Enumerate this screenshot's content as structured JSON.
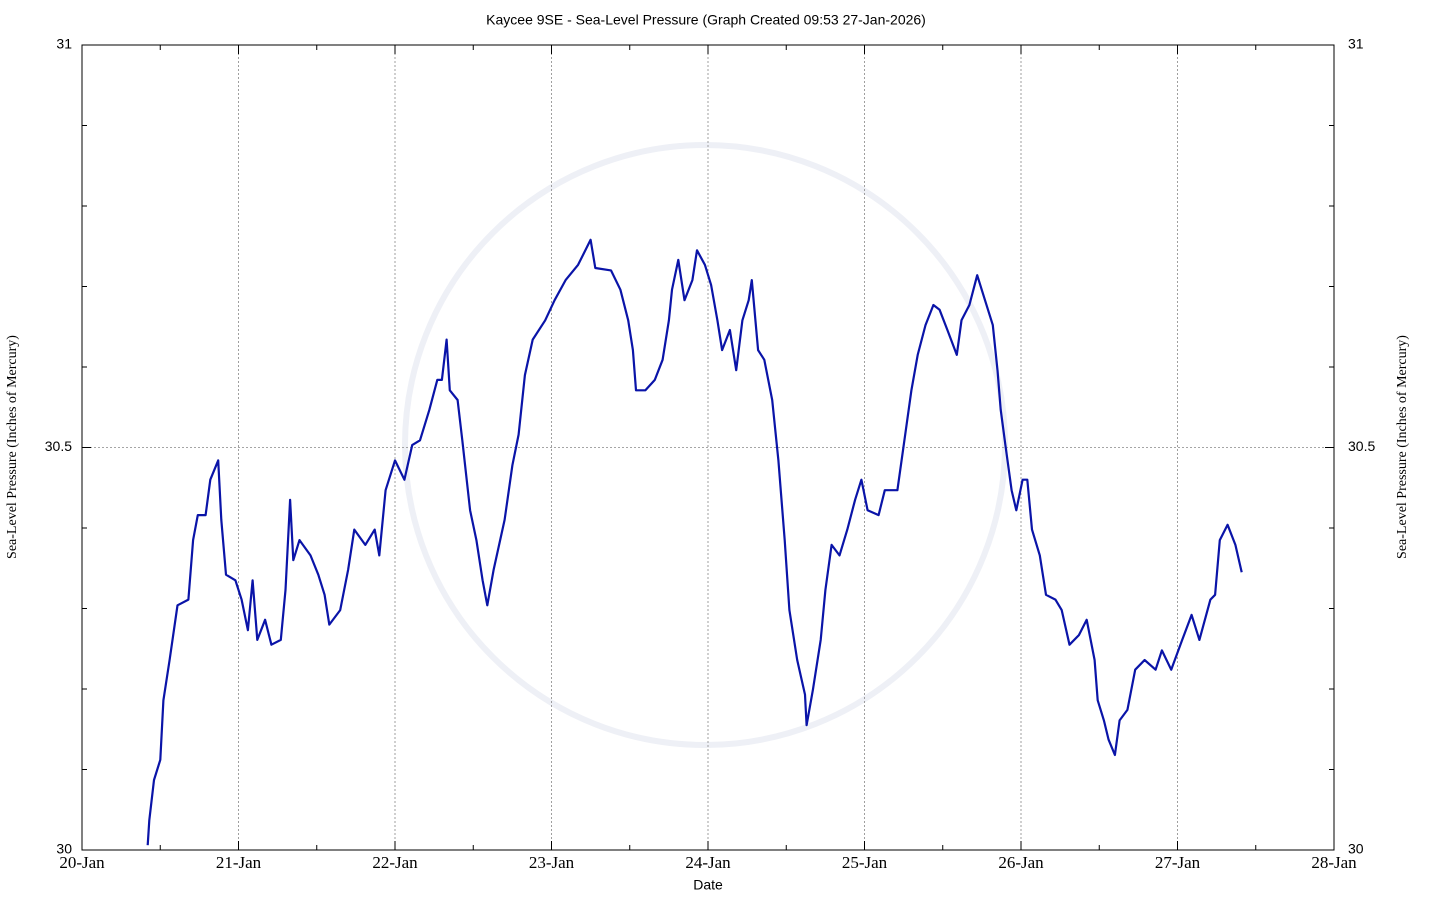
{
  "chart_data": {
    "type": "line",
    "title": "Kaycee 9SE - Sea-Level Pressure (Graph Created 09:53 27-Jan-2026)",
    "xlabel": "Date",
    "ylabel": "Sea-Level Pressure (Inches of Mercury)",
    "color": "#0a14a8",
    "grid": true,
    "xlim": [
      0,
      8
    ],
    "xticks": [
      {
        "value": 0,
        "label": "20-Jan"
      },
      {
        "value": 1,
        "label": "21-Jan"
      },
      {
        "value": 2,
        "label": "22-Jan"
      },
      {
        "value": 3,
        "label": "23-Jan"
      },
      {
        "value": 4,
        "label": "24-Jan"
      },
      {
        "value": 5,
        "label": "25-Jan"
      },
      {
        "value": 6,
        "label": "26-Jan"
      },
      {
        "value": 7,
        "label": "27-Jan"
      },
      {
        "value": 8,
        "label": "28-Jan"
      }
    ],
    "xminorticks": [
      0.5,
      1.5,
      2.5,
      3.5,
      4.5,
      5.5,
      6.5,
      7.5
    ],
    "ylim": [
      30,
      31
    ],
    "yticks": [
      30,
      30.5,
      31
    ],
    "yminorticks": [
      30.1,
      30.2,
      30.3,
      30.4,
      30.6,
      30.7,
      30.8,
      30.9
    ],
    "x": [
      0.42,
      0.43,
      0.46,
      0.5,
      0.52,
      0.56,
      0.61,
      0.68,
      0.71,
      0.74,
      0.79,
      0.82,
      0.87,
      0.89,
      0.92,
      0.98,
      1.02,
      1.06,
      1.09,
      1.12,
      1.17,
      1.21,
      1.27,
      1.3,
      1.33,
      1.35,
      1.39,
      1.46,
      1.51,
      1.55,
      1.58,
      1.65,
      1.7,
      1.74,
      1.81,
      1.87,
      1.9,
      1.94,
      2.0,
      2.06,
      2.11,
      2.16,
      2.22,
      2.27,
      2.3,
      2.33,
      2.35,
      2.4,
      2.43,
      2.48,
      2.52,
      2.56,
      2.59,
      2.63,
      2.7,
      2.75,
      2.79,
      2.83,
      2.88,
      2.96,
      3.02,
      3.09,
      3.17,
      3.25,
      3.28,
      3.38,
      3.44,
      3.49,
      3.52,
      3.54,
      3.6,
      3.66,
      3.71,
      3.75,
      3.77,
      3.81,
      3.85,
      3.9,
      3.93,
      3.98,
      4.02,
      4.06,
      4.09,
      4.14,
      4.18,
      4.22,
      4.26,
      4.28,
      4.32,
      4.36,
      4.41,
      4.45,
      4.49,
      4.52,
      4.57,
      4.62,
      4.63,
      4.67,
      4.72,
      4.75,
      4.79,
      4.84,
      4.89,
      4.94,
      4.98,
      5.02,
      5.09,
      5.13,
      5.21,
      5.26,
      5.3,
      5.34,
      5.39,
      5.44,
      5.48,
      5.53,
      5.59,
      5.62,
      5.67,
      5.72,
      5.77,
      5.82,
      5.85,
      5.87,
      5.9,
      5.94,
      5.97,
      6.01,
      6.04,
      6.07,
      6.12,
      6.16,
      6.22,
      6.26,
      6.31,
      6.37,
      6.42,
      6.47,
      6.49,
      6.53,
      6.56,
      6.6,
      6.63,
      6.68,
      6.73,
      6.79,
      6.86,
      6.9,
      6.96,
      7.03,
      7.09,
      7.14,
      7.21,
      7.24,
      7.27,
      7.32,
      7.37,
      7.41
    ],
    "values": [
      30.006,
      30.037,
      30.087,
      30.112,
      30.186,
      30.236,
      30.304,
      30.311,
      30.385,
      30.416,
      30.416,
      30.46,
      30.484,
      30.41,
      30.342,
      30.335,
      30.311,
      30.273,
      30.335,
      30.261,
      30.286,
      30.255,
      30.261,
      30.323,
      30.435,
      30.36,
      30.385,
      30.366,
      30.342,
      30.317,
      30.28,
      30.298,
      30.348,
      30.398,
      30.379,
      30.398,
      30.366,
      30.447,
      30.484,
      30.46,
      30.503,
      30.509,
      30.547,
      30.584,
      30.584,
      30.634,
      30.571,
      30.559,
      30.509,
      30.422,
      30.385,
      30.335,
      30.304,
      30.348,
      30.41,
      30.478,
      30.516,
      30.59,
      30.634,
      30.658,
      30.683,
      30.708,
      30.727,
      30.758,
      30.723,
      30.72,
      30.696,
      30.658,
      30.621,
      30.571,
      30.571,
      30.584,
      30.609,
      30.658,
      30.696,
      30.733,
      30.683,
      30.708,
      30.745,
      30.727,
      30.702,
      30.658,
      30.621,
      30.646,
      30.596,
      30.658,
      30.683,
      30.708,
      30.621,
      30.609,
      30.559,
      30.484,
      30.385,
      30.298,
      30.236,
      30.193,
      30.155,
      30.199,
      30.261,
      30.323,
      30.379,
      30.366,
      30.398,
      30.435,
      30.46,
      30.422,
      30.416,
      30.447,
      30.447,
      30.516,
      30.571,
      30.615,
      30.652,
      30.677,
      30.671,
      30.646,
      30.615,
      30.658,
      30.677,
      30.714,
      30.683,
      30.652,
      30.596,
      30.547,
      30.503,
      30.447,
      30.422,
      30.46,
      30.46,
      30.398,
      30.366,
      30.317,
      30.311,
      30.298,
      30.255,
      30.267,
      30.286,
      30.236,
      30.186,
      30.161,
      30.137,
      30.118,
      30.161,
      30.174,
      30.224,
      30.236,
      30.224,
      30.248,
      30.224,
      30.261,
      30.292,
      30.261,
      30.311,
      30.317,
      30.385,
      30.404,
      30.379,
      30.345
    ]
  }
}
